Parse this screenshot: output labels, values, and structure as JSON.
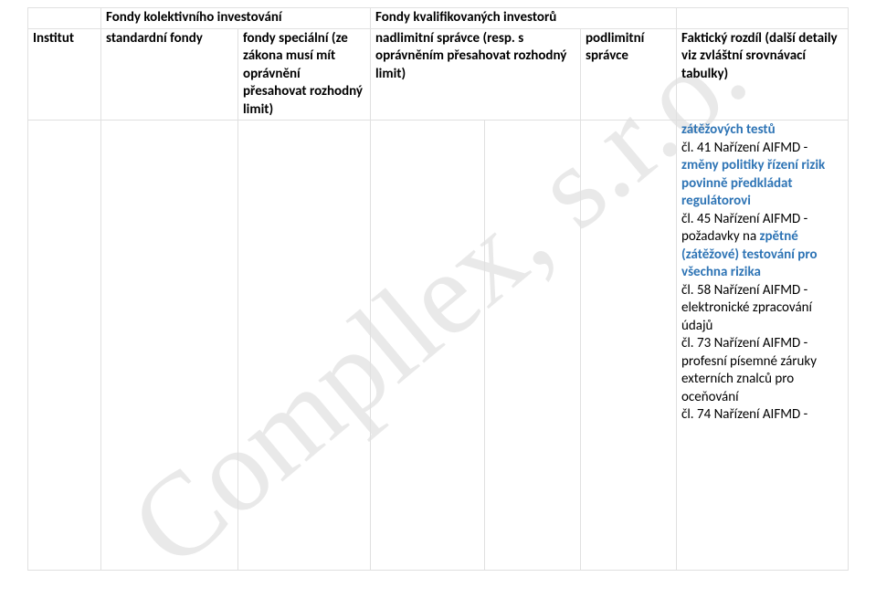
{
  "watermark": "Compllex, s.r.o.",
  "header": {
    "row1": {
      "c1": "",
      "c2_3": "Fondy kolektivního investování",
      "c4_5_6": "Fondy kvalifikovaných investorů",
      "c7": ""
    },
    "row2": {
      "c1": "Institut",
      "c2": "standardní fondy",
      "c3": "fondy speciální (ze zákona musí mít oprávnění přesahovat rozhodný limit)",
      "c4_5": "nadlimitní správce (resp. s oprávněním přesahovat rozhodný limit)",
      "c6": "podlimitní správce",
      "c7": "Faktický rozdíl (další detaily viz zvláštní srovnávací tabulky)"
    }
  },
  "body": {
    "c7_lines": [
      {
        "text": "zátěžových testů",
        "class": "blue bold"
      },
      {
        "text": "čl. 41 Nařízení AIFMD - ",
        "class": ""
      },
      {
        "text": "změny politiky řízení rizik povinně předkládat regulátorovi",
        "class": "blue bold"
      },
      {
        "text": "čl. 45 Nařízení AIFMD - požadavky na ",
        "class": "",
        "inline_next": true
      },
      {
        "text": "zpětné (zátěžové) testování pro všechna rizika",
        "class": "blue bold"
      },
      {
        "text": "čl. 58 Nařízení AIFMD - elektronické zpracování údajů",
        "class": ""
      },
      {
        "text": "čl. 73 Nařízení AIFMD - profesní písemné záruky externích znalců pro oceňování",
        "class": ""
      },
      {
        "text": "čl. 74 Nařízení AIFMD - ",
        "class": ""
      }
    ]
  }
}
